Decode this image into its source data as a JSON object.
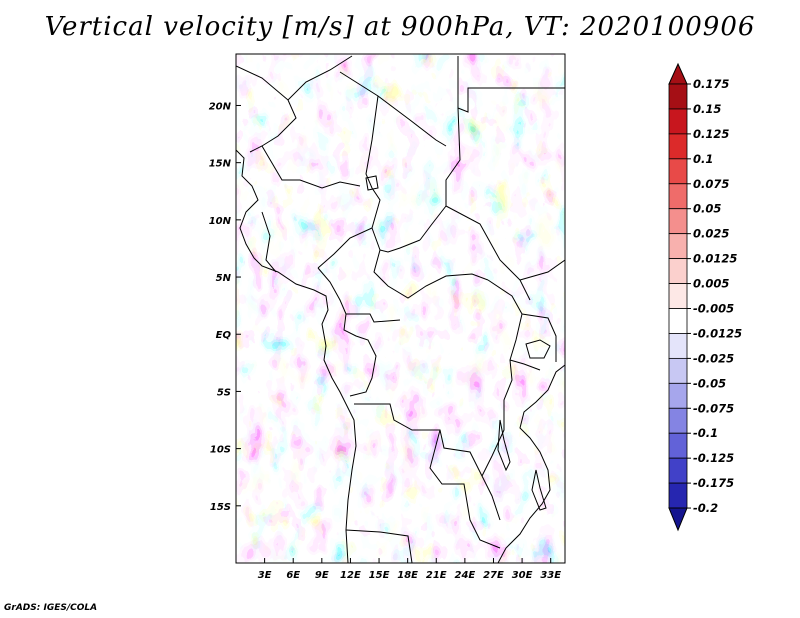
{
  "chart_data": {
    "type": "heatmap",
    "title": "Vertical velocity [m/s] at 900hPa, VT: 2020100906",
    "variable": "Vertical velocity",
    "units": "m/s",
    "level": "900hPa",
    "valid_time": "2020100906",
    "x_ticks": [
      "3E",
      "6E",
      "9E",
      "12E",
      "15E",
      "18E",
      "21E",
      "24E",
      "27E",
      "30E",
      "33E"
    ],
    "y_ticks": [
      "20N",
      "15N",
      "10N",
      "5N",
      "EQ",
      "5S",
      "10S",
      "15S"
    ],
    "x_range_deg": [
      0,
      34.5
    ],
    "y_range_deg": [
      -20,
      24.5
    ],
    "colorbar": {
      "levels": [
        "0.175",
        "0.15",
        "0.125",
        "0.1",
        "0.075",
        "0.05",
        "0.025",
        "0.0125",
        "0.005",
        "-0.005",
        "-0.0125",
        "-0.025",
        "-0.05",
        "-0.075",
        "-0.1",
        "-0.125",
        "-0.175",
        "-0.2"
      ],
      "colors": [
        "#a50f15",
        "#c8161e",
        "#dc2a2a",
        "#e84a48",
        "#ef6c6a",
        "#f48f8d",
        "#f8b1ae",
        "#fbd0cd",
        "#fde8e6",
        "#ffffff",
        "#e4e4fa",
        "#c8c8f3",
        "#a6a6ec",
        "#8484e3",
        "#6262d8",
        "#4141c8",
        "#2626b0",
        "#15158f"
      ],
      "extend": "both"
    }
  },
  "footer": {
    "credit": "GrADS: IGES/COLA"
  }
}
